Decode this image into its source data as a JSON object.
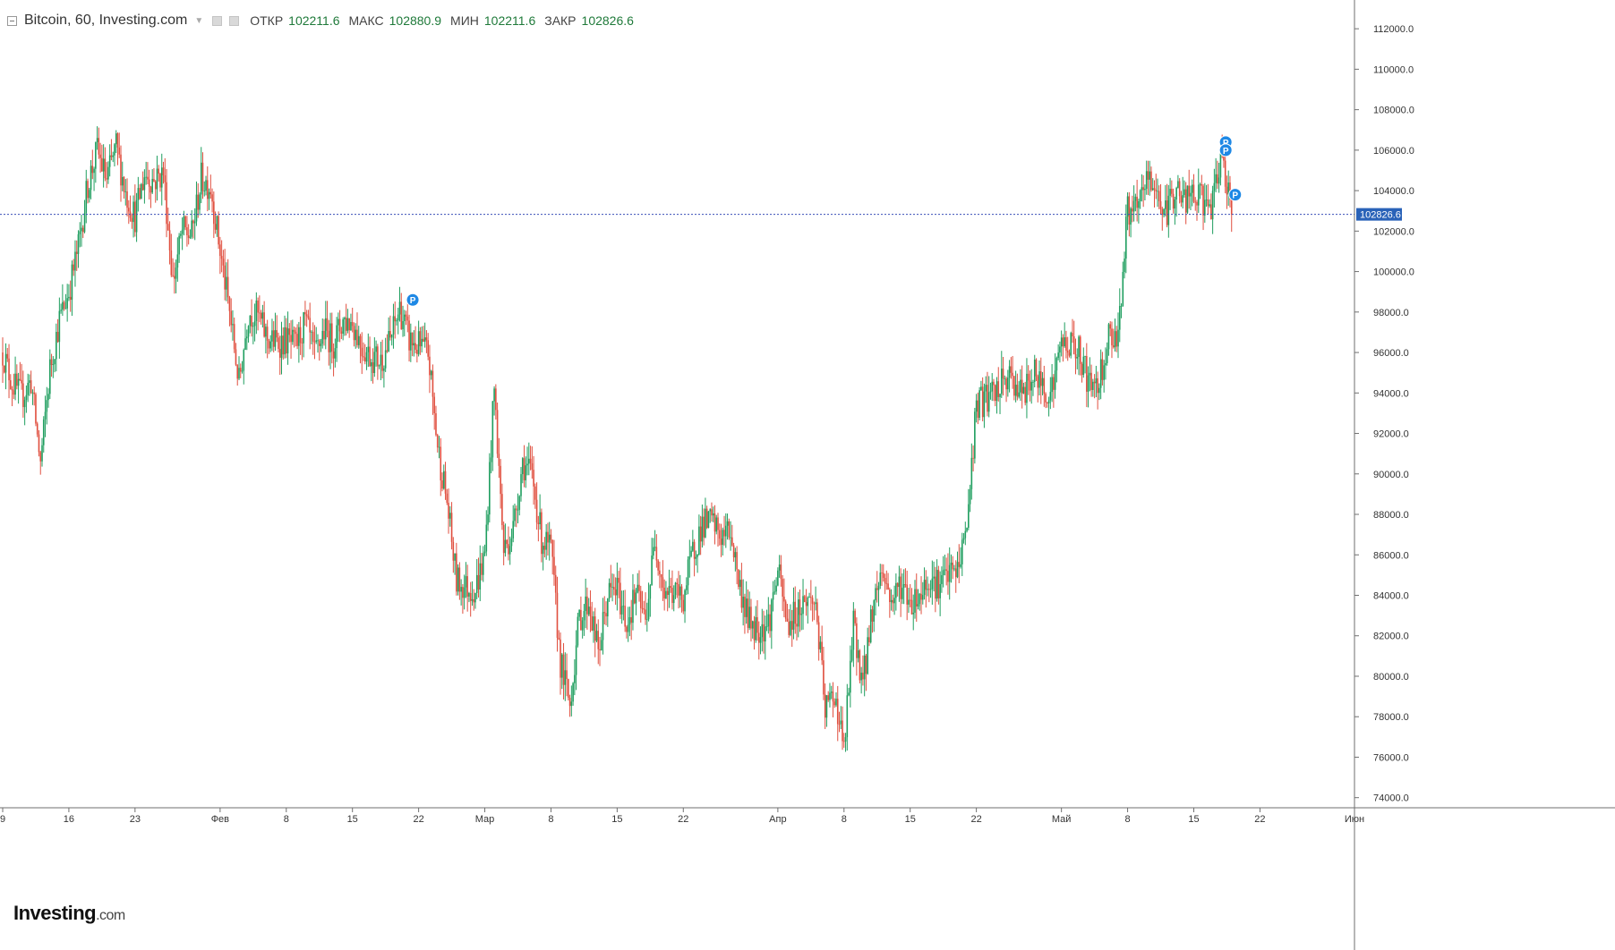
{
  "header": {
    "title": "Bitcoin, 60, Investing.com",
    "open_label": "ОТКР",
    "open_value": "102211.6",
    "high_label": "МАКС",
    "high_value": "102880.9",
    "low_label": "МИН",
    "low_value": "102211.6",
    "close_label": "ЗАКР",
    "close_value": "102826.6"
  },
  "logo": {
    "brand": "Investing",
    "domain": ".com"
  },
  "colors": {
    "up": "#1f9e5f",
    "down": "#e04f3f",
    "price_line": "#3a4fb8",
    "price_badge": "#2962b8",
    "marker": "#1e88e5",
    "axis": "#777777"
  },
  "chart_data": {
    "type": "candlestick",
    "interval": "60",
    "ylim": [
      73500,
      113200
    ],
    "y_ticks": [
      74000,
      76000,
      78000,
      80000,
      82000,
      84000,
      86000,
      88000,
      90000,
      92000,
      94000,
      96000,
      98000,
      100000,
      102000,
      104000,
      106000,
      108000,
      110000,
      112000
    ],
    "y_tick_labels": [
      "74000.0",
      "76000.0",
      "78000.0",
      "80000.0",
      "82000.0",
      "84000.0",
      "86000.0",
      "88000.0",
      "90000.0",
      "92000.0",
      "94000.0",
      "96000.0",
      "98000.0",
      "100000.0",
      "102000.0",
      "104000.0",
      "106000.0",
      "108000.0",
      "110000.0",
      "112000.0"
    ],
    "x_start": "2025-01-09",
    "x_end": "2025-06-01",
    "x_ticks": [
      {
        "date": "2025-01-09",
        "label": "9"
      },
      {
        "date": "2025-01-16",
        "label": "16"
      },
      {
        "date": "2025-01-23",
        "label": "23"
      },
      {
        "date": "2025-02-01",
        "label": "Фев"
      },
      {
        "date": "2025-02-08",
        "label": "8"
      },
      {
        "date": "2025-02-15",
        "label": "15"
      },
      {
        "date": "2025-02-22",
        "label": "22"
      },
      {
        "date": "2025-03-01",
        "label": "Мар"
      },
      {
        "date": "2025-03-08",
        "label": "8"
      },
      {
        "date": "2025-03-15",
        "label": "15"
      },
      {
        "date": "2025-03-22",
        "label": "22"
      },
      {
        "date": "2025-04-01",
        "label": "Апр"
      },
      {
        "date": "2025-04-08",
        "label": "8"
      },
      {
        "date": "2025-04-15",
        "label": "15"
      },
      {
        "date": "2025-04-22",
        "label": "22"
      },
      {
        "date": "2025-05-01",
        "label": "Май"
      },
      {
        "date": "2025-05-08",
        "label": "8"
      },
      {
        "date": "2025-05-15",
        "label": "15"
      },
      {
        "date": "2025-05-22",
        "label": "22"
      },
      {
        "date": "2025-06-01",
        "label": "Июн"
      }
    ],
    "path_points": [
      [
        "2025-01-09",
        96000
      ],
      [
        "2025-01-10",
        94500
      ],
      [
        "2025-01-11",
        93800
      ],
      [
        "2025-01-12",
        94600
      ],
      [
        "2025-01-13",
        90500
      ],
      [
        "2025-01-14",
        95200
      ],
      [
        "2025-01-15",
        97600
      ],
      [
        "2025-01-16",
        99000
      ],
      [
        "2025-01-17",
        101200
      ],
      [
        "2025-01-18",
        104300
      ],
      [
        "2025-01-19",
        106000
      ],
      [
        "2025-01-20",
        104500
      ],
      [
        "2025-01-21",
        106200
      ],
      [
        "2025-01-22",
        103900
      ],
      [
        "2025-01-23",
        102700
      ],
      [
        "2025-01-24",
        104800
      ],
      [
        "2025-01-25",
        104500
      ],
      [
        "2025-01-26",
        104900
      ],
      [
        "2025-01-27",
        99500
      ],
      [
        "2025-01-28",
        102000
      ],
      [
        "2025-01-29",
        101800
      ],
      [
        "2025-01-30",
        104600
      ],
      [
        "2025-01-31",
        104200
      ],
      [
        "2025-02-01",
        101000
      ],
      [
        "2025-02-02",
        98000
      ],
      [
        "2025-02-03",
        94500
      ],
      [
        "2025-02-04",
        98000
      ],
      [
        "2025-02-05",
        97800
      ],
      [
        "2025-02-06",
        96700
      ],
      [
        "2025-02-07",
        96500
      ],
      [
        "2025-02-08",
        96600
      ],
      [
        "2025-02-09",
        96300
      ],
      [
        "2025-02-10",
        97500
      ],
      [
        "2025-02-11",
        95800
      ],
      [
        "2025-02-12",
        97100
      ],
      [
        "2025-02-13",
        96500
      ],
      [
        "2025-02-14",
        97600
      ],
      [
        "2025-02-15",
        97500
      ],
      [
        "2025-02-16",
        96300
      ],
      [
        "2025-02-17",
        95800
      ],
      [
        "2025-02-18",
        95600
      ],
      [
        "2025-02-19",
        96600
      ],
      [
        "2025-02-20",
        98200
      ],
      [
        "2025-02-21",
        96600
      ],
      [
        "2025-02-22",
        96300
      ],
      [
        "2025-02-23",
        96000
      ],
      [
        "2025-02-24",
        91400
      ],
      [
        "2025-02-25",
        88600
      ],
      [
        "2025-02-26",
        84700
      ],
      [
        "2025-02-27",
        84400
      ],
      [
        "2025-02-28",
        84300
      ],
      [
        "2025-03-01",
        86000
      ],
      [
        "2025-03-02",
        94200
      ],
      [
        "2025-03-03",
        86200
      ],
      [
        "2025-03-04",
        87300
      ],
      [
        "2025-03-05",
        90600
      ],
      [
        "2025-03-06",
        89900
      ],
      [
        "2025-03-07",
        86800
      ],
      [
        "2025-03-08",
        86200
      ],
      [
        "2025-03-09",
        80700
      ],
      [
        "2025-03-10",
        78600
      ],
      [
        "2025-03-11",
        82900
      ],
      [
        "2025-03-12",
        83700
      ],
      [
        "2025-03-13",
        81100
      ],
      [
        "2025-03-14",
        84000
      ],
      [
        "2025-03-15",
        84300
      ],
      [
        "2025-03-16",
        82600
      ],
      [
        "2025-03-17",
        84100
      ],
      [
        "2025-03-18",
        82700
      ],
      [
        "2025-03-19",
        86800
      ],
      [
        "2025-03-20",
        84200
      ],
      [
        "2025-03-21",
        84100
      ],
      [
        "2025-03-22",
        83900
      ],
      [
        "2025-03-23",
        86100
      ],
      [
        "2025-03-24",
        87500
      ],
      [
        "2025-03-25",
        87600
      ],
      [
        "2025-03-26",
        86900
      ],
      [
        "2025-03-27",
        87200
      ],
      [
        "2025-03-28",
        84300
      ],
      [
        "2025-03-29",
        82700
      ],
      [
        "2025-03-30",
        82400
      ],
      [
        "2025-03-31",
        82600
      ],
      [
        "2025-04-01",
        85200
      ],
      [
        "2025-04-02",
        82500
      ],
      [
        "2025-04-03",
        83200
      ],
      [
        "2025-04-04",
        83800
      ],
      [
        "2025-04-05",
        83600
      ],
      [
        "2025-04-06",
        78300
      ],
      [
        "2025-04-07",
        79200
      ],
      [
        "2025-04-08",
        76300
      ],
      [
        "2025-04-09",
        82500
      ],
      [
        "2025-04-10",
        79600
      ],
      [
        "2025-04-11",
        83400
      ],
      [
        "2025-04-12",
        85300
      ],
      [
        "2025-04-13",
        83700
      ],
      [
        "2025-04-14",
        84600
      ],
      [
        "2025-04-15",
        83700
      ],
      [
        "2025-04-16",
        84000
      ],
      [
        "2025-04-17",
        84900
      ],
      [
        "2025-04-18",
        84500
      ],
      [
        "2025-04-19",
        85000
      ],
      [
        "2025-04-20",
        85200
      ],
      [
        "2025-04-21",
        87500
      ],
      [
        "2025-04-22",
        93400
      ],
      [
        "2025-04-23",
        93700
      ],
      [
        "2025-04-24",
        93900
      ],
      [
        "2025-04-25",
        94700
      ],
      [
        "2025-04-26",
        94600
      ],
      [
        "2025-04-27",
        93800
      ],
      [
        "2025-04-28",
        95000
      ],
      [
        "2025-04-29",
        94300
      ],
      [
        "2025-04-30",
        94200
      ],
      [
        "2025-05-01",
        96500
      ],
      [
        "2025-05-02",
        96400
      ],
      [
        "2025-05-03",
        95900
      ],
      [
        "2025-05-04",
        94300
      ],
      [
        "2025-05-05",
        94700
      ],
      [
        "2025-05-06",
        96800
      ],
      [
        "2025-05-07",
        97000
      ],
      [
        "2025-05-08",
        103000
      ],
      [
        "2025-05-09",
        102900
      ],
      [
        "2025-05-10",
        104600
      ],
      [
        "2025-05-11",
        104100
      ],
      [
        "2025-05-12",
        102800
      ],
      [
        "2025-05-13",
        104100
      ],
      [
        "2025-05-14",
        103500
      ],
      [
        "2025-05-15",
        103700
      ],
      [
        "2025-05-16",
        103500
      ],
      [
        "2025-05-17",
        103200
      ],
      [
        "2025-05-18",
        106000
      ],
      [
        "2025-05-19",
        102826.6
      ]
    ],
    "current_price": 102826.6,
    "current_price_label": "102826.6",
    "markers": [
      {
        "date": "2025-02-21",
        "price": 98600,
        "label": "P"
      },
      {
        "date": "2025-05-18",
        "price": 106400,
        "label": "P"
      },
      {
        "date": "2025-05-18",
        "price": 106000,
        "label": "P"
      },
      {
        "date": "2025-05-19",
        "price": 103800,
        "label": "P"
      }
    ]
  }
}
